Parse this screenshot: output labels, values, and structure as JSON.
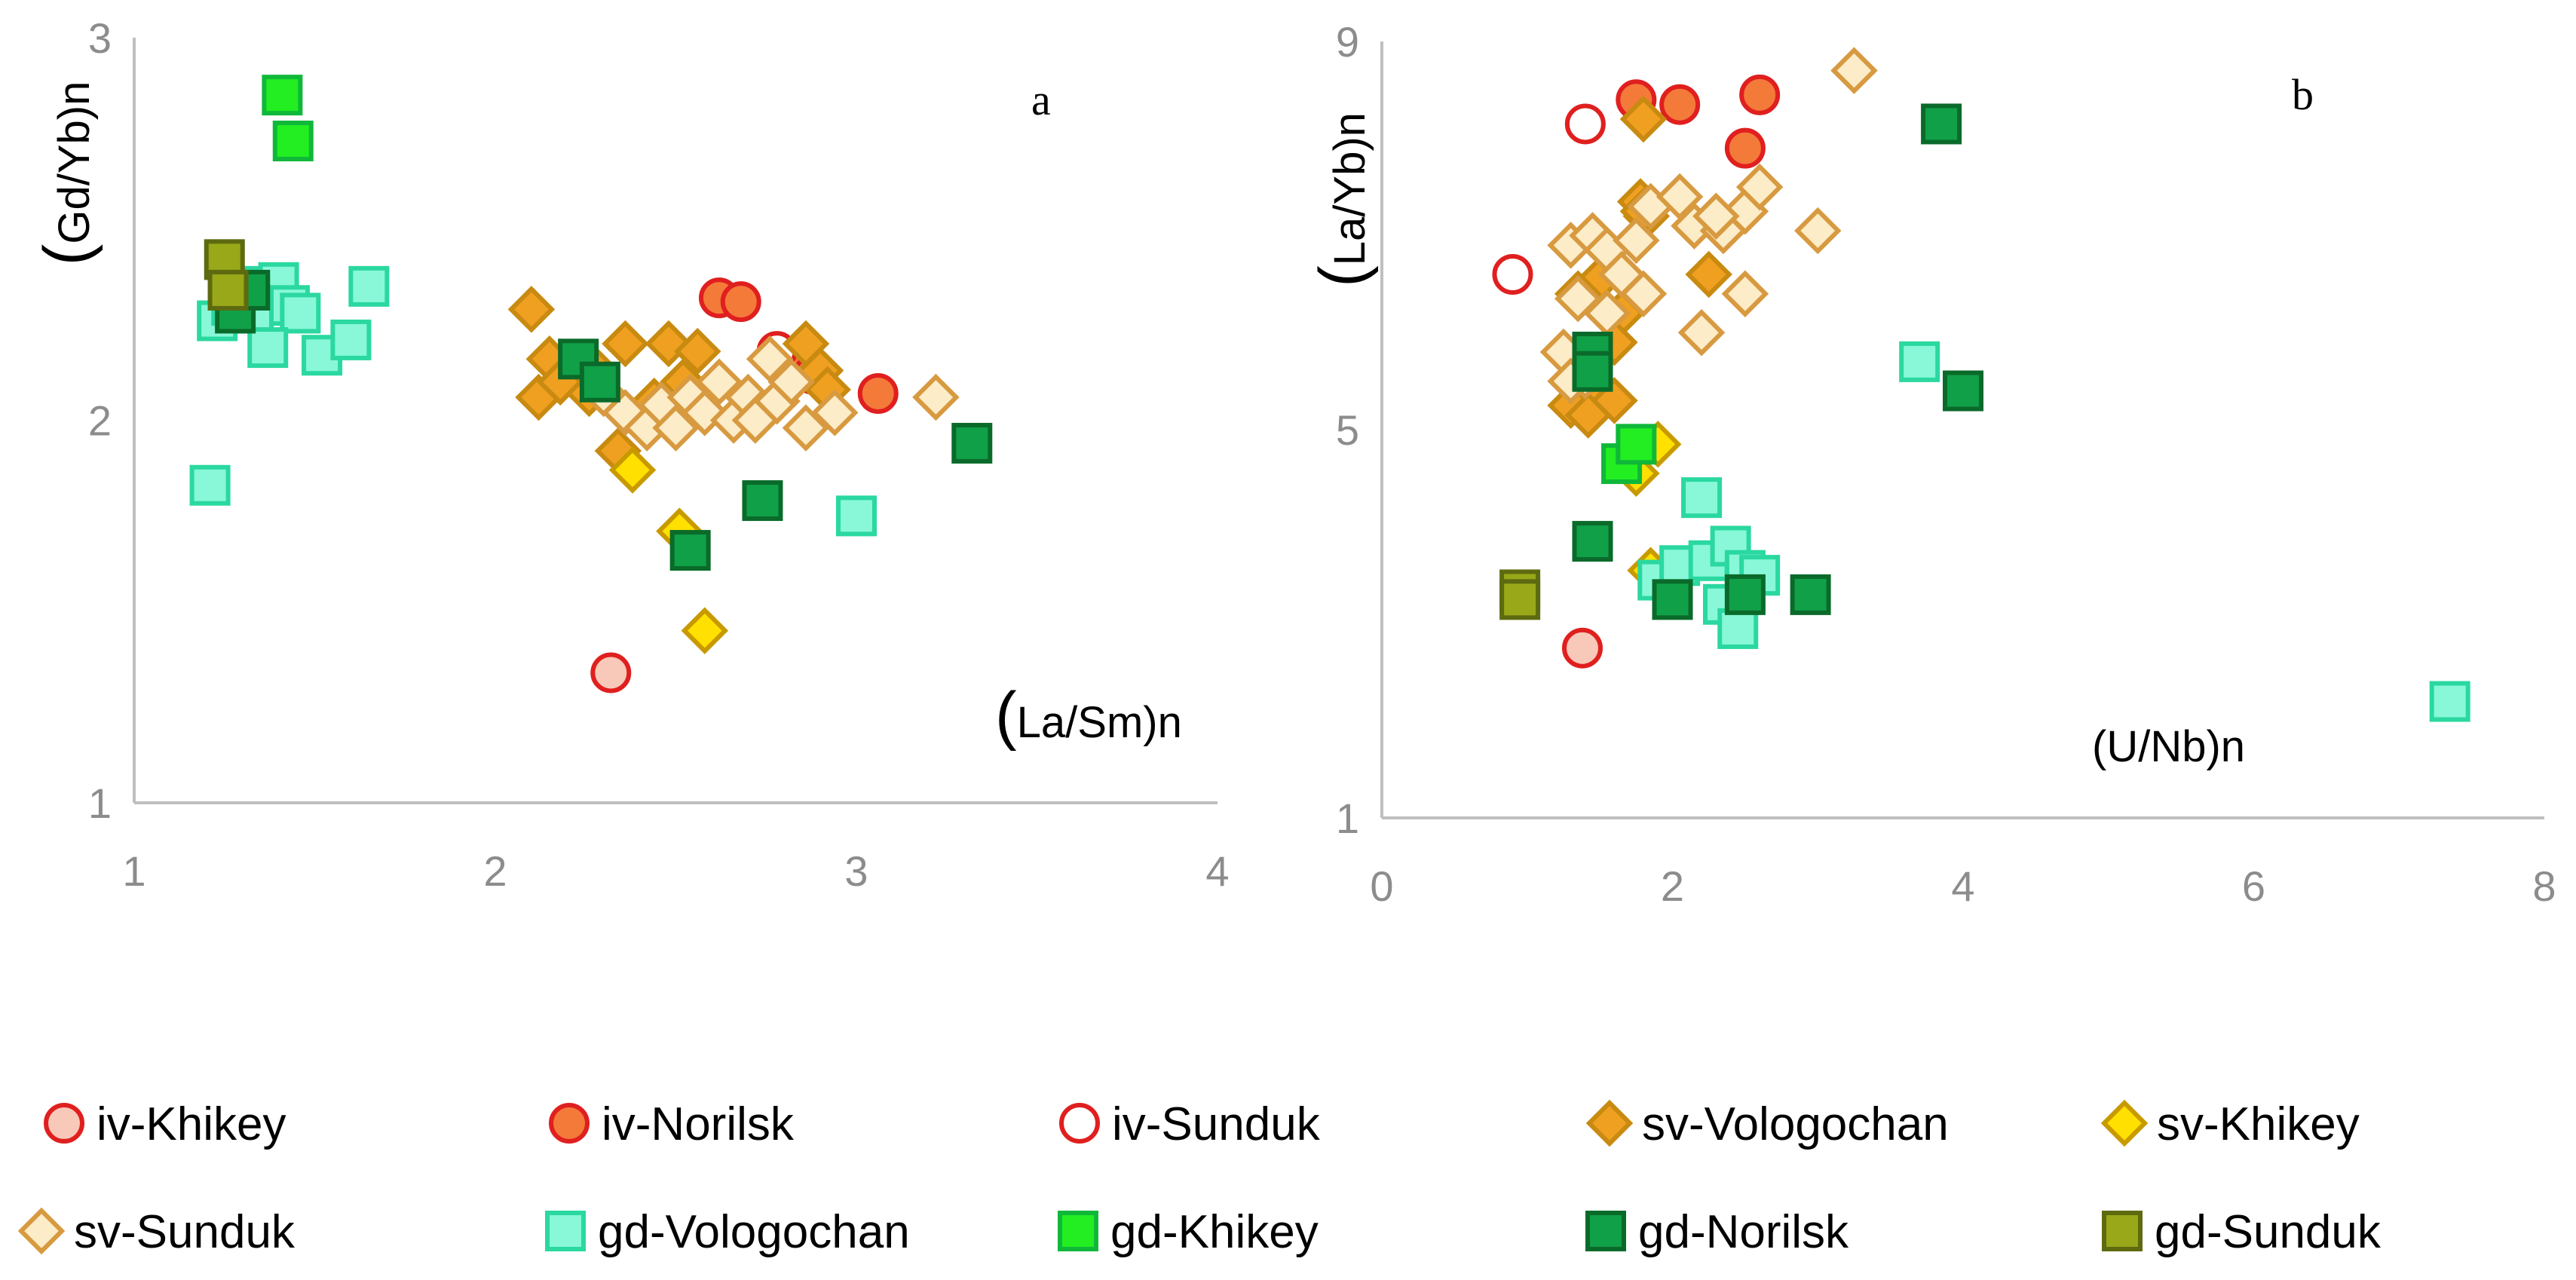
{
  "series_styles": {
    "iv-Khikey": {
      "marker": "circle",
      "fill": "#f8c8b8",
      "stroke": "#e01f1f"
    },
    "iv-Norilsk": {
      "marker": "circle",
      "fill": "#f47a3a",
      "stroke": "#e01f1f"
    },
    "iv-Sunduk": {
      "marker": "circle",
      "fill": "#ffffff",
      "stroke": "#e01f1f"
    },
    "sv-Vologochan": {
      "marker": "diamond",
      "fill": "#f0a020",
      "stroke": "#c88a10"
    },
    "sv-Khikey": {
      "marker": "diamond",
      "fill": "#ffe000",
      "stroke": "#c89a00"
    },
    "sv-Sunduk": {
      "marker": "diamond",
      "fill": "#fcecc8",
      "stroke": "#d89a40"
    },
    "gd-Vologochan": {
      "marker": "square",
      "fill": "#88f8d8",
      "stroke": "#2ad8a0"
    },
    "gd-Khikey": {
      "marker": "square",
      "fill": "#22ee22",
      "stroke": "#10b83a"
    },
    "gd-Norilsk": {
      "marker": "square",
      "fill": "#10a048",
      "stroke": "#0a6a2a"
    },
    "gd-Sunduk": {
      "marker": "square",
      "fill": "#98a818",
      "stroke": "#5e6a10"
    }
  },
  "legend": {
    "items": [
      "iv-Khikey",
      "iv-Norilsk",
      "iv-Sunduk",
      "sv-Vologochan",
      "sv-Khikey",
      "sv-Sunduk",
      "gd-Vologochan",
      "gd-Khikey",
      "gd-Norilsk",
      "gd-Sunduk"
    ]
  },
  "chart_data": [
    {
      "type": "scatter",
      "panel_label": "a",
      "ylabel_paren": "(",
      "ylabel_text": "Gd/Yb)n",
      "xlabel_paren": "(",
      "xlabel_text": "La/Sm)n",
      "xlim": [
        1,
        4
      ],
      "ylim": [
        1,
        3
      ],
      "xticks": [
        "1",
        "2",
        "3",
        "4"
      ],
      "yticks": [
        "1",
        "2",
        "3"
      ],
      "series": [
        {
          "name": "iv-Khikey",
          "points": [
            [
              2.32,
              1.34
            ]
          ]
        },
        {
          "name": "iv-Norilsk",
          "points": [
            [
              2.62,
              2.32
            ],
            [
              2.68,
              2.31
            ],
            [
              2.82,
              2.14
            ],
            [
              2.88,
              2.12
            ],
            [
              3.06,
              2.07
            ]
          ]
        },
        {
          "name": "iv-Sunduk",
          "points": [
            [
              2.78,
              2.18
            ]
          ]
        },
        {
          "name": "sv-Vologochan",
          "points": [
            [
              2.1,
              2.29
            ],
            [
              2.15,
              2.16
            ],
            [
              2.12,
              2.06
            ],
            [
              2.18,
              2.1
            ],
            [
              2.28,
              2.13
            ],
            [
              2.36,
              2.2
            ],
            [
              2.48,
              2.2
            ],
            [
              2.56,
              2.18
            ],
            [
              2.52,
              2.1
            ],
            [
              2.44,
              2.05
            ],
            [
              2.34,
              1.92
            ],
            [
              2.86,
              2.2
            ],
            [
              2.9,
              2.13
            ],
            [
              2.92,
              2.08
            ],
            [
              2.26,
              2.07
            ]
          ]
        },
        {
          "name": "sv-Khikey",
          "points": [
            [
              2.38,
              1.87
            ],
            [
              2.51,
              1.71
            ],
            [
              2.58,
              1.45
            ]
          ]
        },
        {
          "name": "sv-Sunduk",
          "points": [
            [
              2.3,
              2.07
            ],
            [
              2.36,
              2.02
            ],
            [
              2.42,
              1.98
            ],
            [
              2.46,
              2.04
            ],
            [
              2.5,
              1.98
            ],
            [
              2.54,
              2.06
            ],
            [
              2.58,
              2.02
            ],
            [
              2.62,
              2.1
            ],
            [
              2.66,
              2.0
            ],
            [
              2.7,
              2.06
            ],
            [
              2.74,
              2.02
            ],
            [
              2.78,
              2.05
            ],
            [
              2.82,
              2.1
            ],
            [
              2.86,
              1.98
            ],
            [
              2.94,
              2.02
            ],
            [
              2.76,
              2.16
            ],
            [
              2.72,
              2.0
            ],
            [
              3.22,
              2.06
            ]
          ]
        },
        {
          "name": "gd-Vologochan",
          "points": [
            [
              1.21,
              1.83
            ],
            [
              1.23,
              2.26
            ],
            [
              1.27,
              2.3
            ],
            [
              1.33,
              2.28
            ],
            [
              1.36,
              2.35
            ],
            [
              1.4,
              2.36
            ],
            [
              1.43,
              2.3
            ],
            [
              1.46,
              2.28
            ],
            [
              1.37,
              2.19
            ],
            [
              1.52,
              2.17
            ],
            [
              1.6,
              2.21
            ],
            [
              1.65,
              2.35
            ],
            [
              3.0,
              1.75
            ]
          ]
        },
        {
          "name": "gd-Khikey",
          "points": [
            [
              1.41,
              2.85
            ],
            [
              1.44,
              2.73
            ]
          ]
        },
        {
          "name": "gd-Norilsk",
          "points": [
            [
              1.28,
              2.28
            ],
            [
              1.32,
              2.34
            ],
            [
              2.23,
              2.16
            ],
            [
              2.29,
              2.1
            ],
            [
              2.54,
              1.66
            ],
            [
              2.74,
              1.79
            ],
            [
              3.32,
              1.94
            ]
          ]
        },
        {
          "name": "gd-Sunduk",
          "points": [
            [
              1.25,
              2.42
            ],
            [
              1.26,
              2.34
            ]
          ]
        }
      ]
    },
    {
      "type": "scatter",
      "panel_label": "b",
      "ylabel_paren": "(",
      "ylabel_text": "La/Yb)n",
      "xlabel_paren": "",
      "xlabel_text": "(U/Nb)n",
      "xlim": [
        0,
        8
      ],
      "ylim": [
        1,
        9
      ],
      "xticks": [
        "0",
        "2",
        "4",
        "6",
        "8"
      ],
      "yticks": [
        "1",
        "5",
        "9"
      ],
      "series": [
        {
          "name": "iv-Khikey",
          "points": [
            [
              1.38,
              2.75
            ]
          ]
        },
        {
          "name": "iv-Norilsk",
          "points": [
            [
              1.75,
              8.4
            ],
            [
              2.05,
              8.35
            ],
            [
              2.5,
              7.9
            ],
            [
              2.6,
              8.45
            ]
          ]
        },
        {
          "name": "iv-Sunduk",
          "points": [
            [
              0.9,
              6.6
            ],
            [
              1.4,
              8.15
            ]
          ]
        },
        {
          "name": "sv-Vologochan",
          "points": [
            [
              1.8,
              8.2
            ],
            [
              1.78,
              7.35
            ],
            [
              1.82,
              7.2
            ],
            [
              1.65,
              6.2
            ],
            [
              1.6,
              5.9
            ],
            [
              1.45,
              5.4
            ],
            [
              1.3,
              5.25
            ],
            [
              1.42,
              5.15
            ],
            [
              1.6,
              5.3
            ],
            [
              2.25,
              6.6
            ],
            [
              1.5,
              6.55
            ],
            [
              1.35,
              6.4
            ],
            [
              1.8,
              7.25
            ]
          ]
        },
        {
          "name": "sv-Khikey",
          "points": [
            [
              1.9,
              4.85
            ],
            [
              1.75,
              4.55
            ],
            [
              1.85,
              3.55
            ]
          ]
        },
        {
          "name": "sv-Sunduk",
          "points": [
            [
              1.3,
              6.9
            ],
            [
              1.45,
              7.0
            ],
            [
              1.55,
              6.85
            ],
            [
              1.65,
              6.6
            ],
            [
              1.75,
              6.95
            ],
            [
              1.85,
              7.3
            ],
            [
              2.05,
              7.4
            ],
            [
              2.15,
              7.1
            ],
            [
              2.35,
              7.05
            ],
            [
              2.5,
              7.25
            ],
            [
              2.6,
              7.5
            ],
            [
              1.35,
              6.35
            ],
            [
              1.55,
              6.2
            ],
            [
              1.8,
              6.4
            ],
            [
              1.25,
              5.8
            ],
            [
              1.4,
              5.55
            ],
            [
              1.3,
              5.5
            ],
            [
              2.2,
              6.0
            ],
            [
              2.5,
              6.4
            ],
            [
              2.3,
              7.2
            ],
            [
              3.0,
              7.05
            ],
            [
              3.25,
              8.7
            ]
          ]
        },
        {
          "name": "gd-Vologochan",
          "points": [
            [
              1.9,
              3.45
            ],
            [
              2.05,
              3.6
            ],
            [
              2.25,
              3.65
            ],
            [
              2.4,
              3.8
            ],
            [
              2.5,
              3.55
            ],
            [
              2.6,
              3.5
            ],
            [
              2.35,
              3.2
            ],
            [
              2.45,
              2.95
            ],
            [
              3.7,
              5.7
            ],
            [
              2.2,
              4.3
            ],
            [
              7.35,
              2.2
            ]
          ]
        },
        {
          "name": "gd-Khikey",
          "points": [
            [
              1.65,
              4.65
            ],
            [
              1.75,
              4.85
            ]
          ]
        },
        {
          "name": "gd-Norilsk",
          "points": [
            [
              1.45,
              5.8
            ],
            [
              1.45,
              5.6
            ],
            [
              1.45,
              3.85
            ],
            [
              2.0,
              3.25
            ],
            [
              2.5,
              3.3
            ],
            [
              2.95,
              3.3
            ],
            [
              3.85,
              8.15
            ],
            [
              4.0,
              5.4
            ]
          ]
        },
        {
          "name": "gd-Sunduk",
          "points": [
            [
              0.95,
              3.35
            ],
            [
              0.95,
              3.25
            ]
          ]
        }
      ]
    }
  ]
}
